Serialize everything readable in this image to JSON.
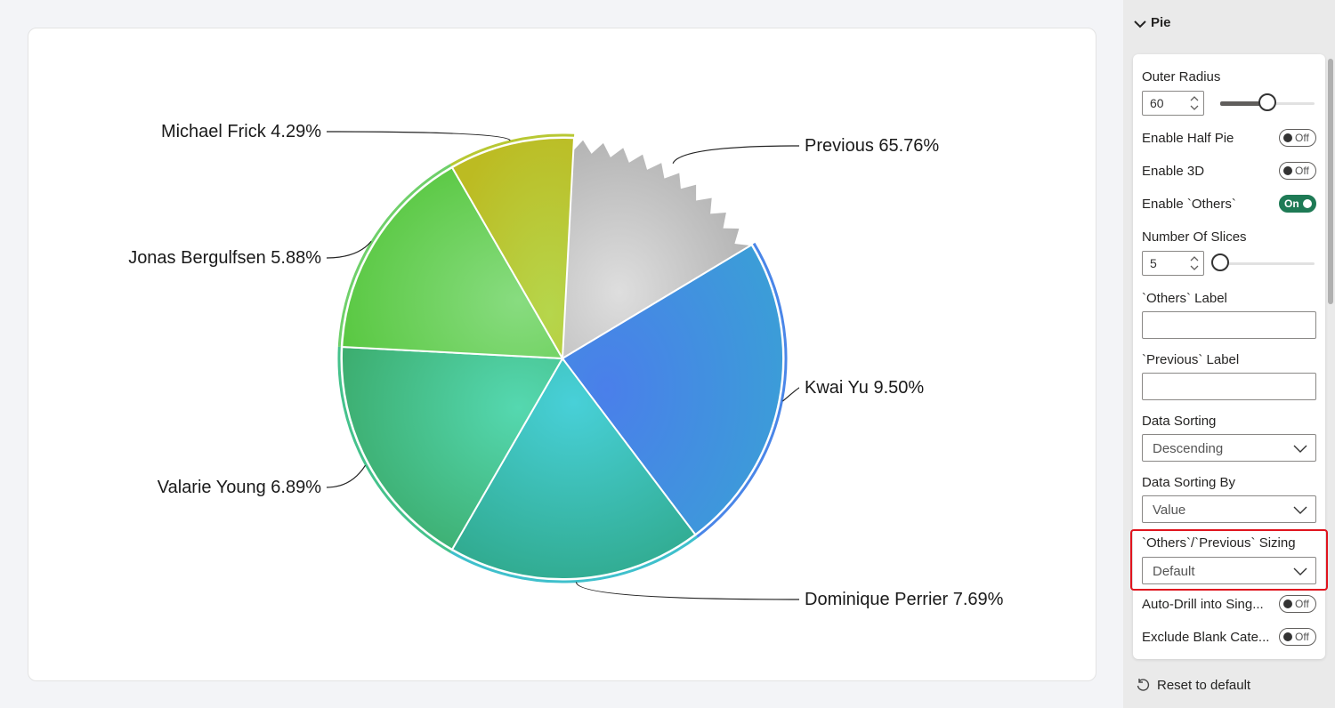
{
  "visual": {
    "chart_data": {
      "type": "pie",
      "categories": [
        "Previous",
        "Kwai Yu",
        "Dominique Perrier",
        "Valarie Young",
        "Jonas Bergulfsen",
        "Michael Frick"
      ],
      "values": [
        65.76,
        9.5,
        7.69,
        6.89,
        5.88,
        4.29
      ],
      "labels": [
        "Previous 65.76%",
        "Kwai Yu 9.50%",
        "Dominique Perrier 7.69%",
        "Valarie Young 6.89%",
        "Jonas Bergulfsen 5.88%",
        "Michael Frick 4.29%"
      ],
      "colors": [
        "#c4c4c4",
        "#4a86e8",
        "#3fc0cc",
        "#45c28c",
        "#6fd06a",
        "#b8c833"
      ],
      "others_sizing": "Default"
    }
  },
  "pane": {
    "section_title": "Pie",
    "outer_radius": {
      "label": "Outer Radius",
      "value": "60",
      "level_fraction": 0.5
    },
    "half_pie": {
      "label": "Enable Half Pie",
      "state": "Off"
    },
    "enable_3d": {
      "label": "Enable 3D",
      "state": "Off"
    },
    "enable_others": {
      "label": "Enable `Others`",
      "state": "On"
    },
    "num_slices": {
      "label": "Number Of Slices",
      "value": "5",
      "level_fraction": 0.0
    },
    "others_label": {
      "label": "`Others` Label",
      "value": ""
    },
    "previous_label": {
      "label": "`Previous` Label",
      "value": ""
    },
    "data_sorting": {
      "label": "Data Sorting",
      "value": "Descending"
    },
    "data_sorting_by": {
      "label": "Data Sorting By",
      "value": "Value"
    },
    "sizing": {
      "label": "`Others`/`Previous` Sizing",
      "value": "Default"
    },
    "auto_drill": {
      "label": "Auto-Drill into Sing...",
      "state": "Off"
    },
    "exclude_blank": {
      "label": "Exclude Blank Cate...",
      "state": "Off"
    },
    "reset_label": "Reset to default"
  }
}
